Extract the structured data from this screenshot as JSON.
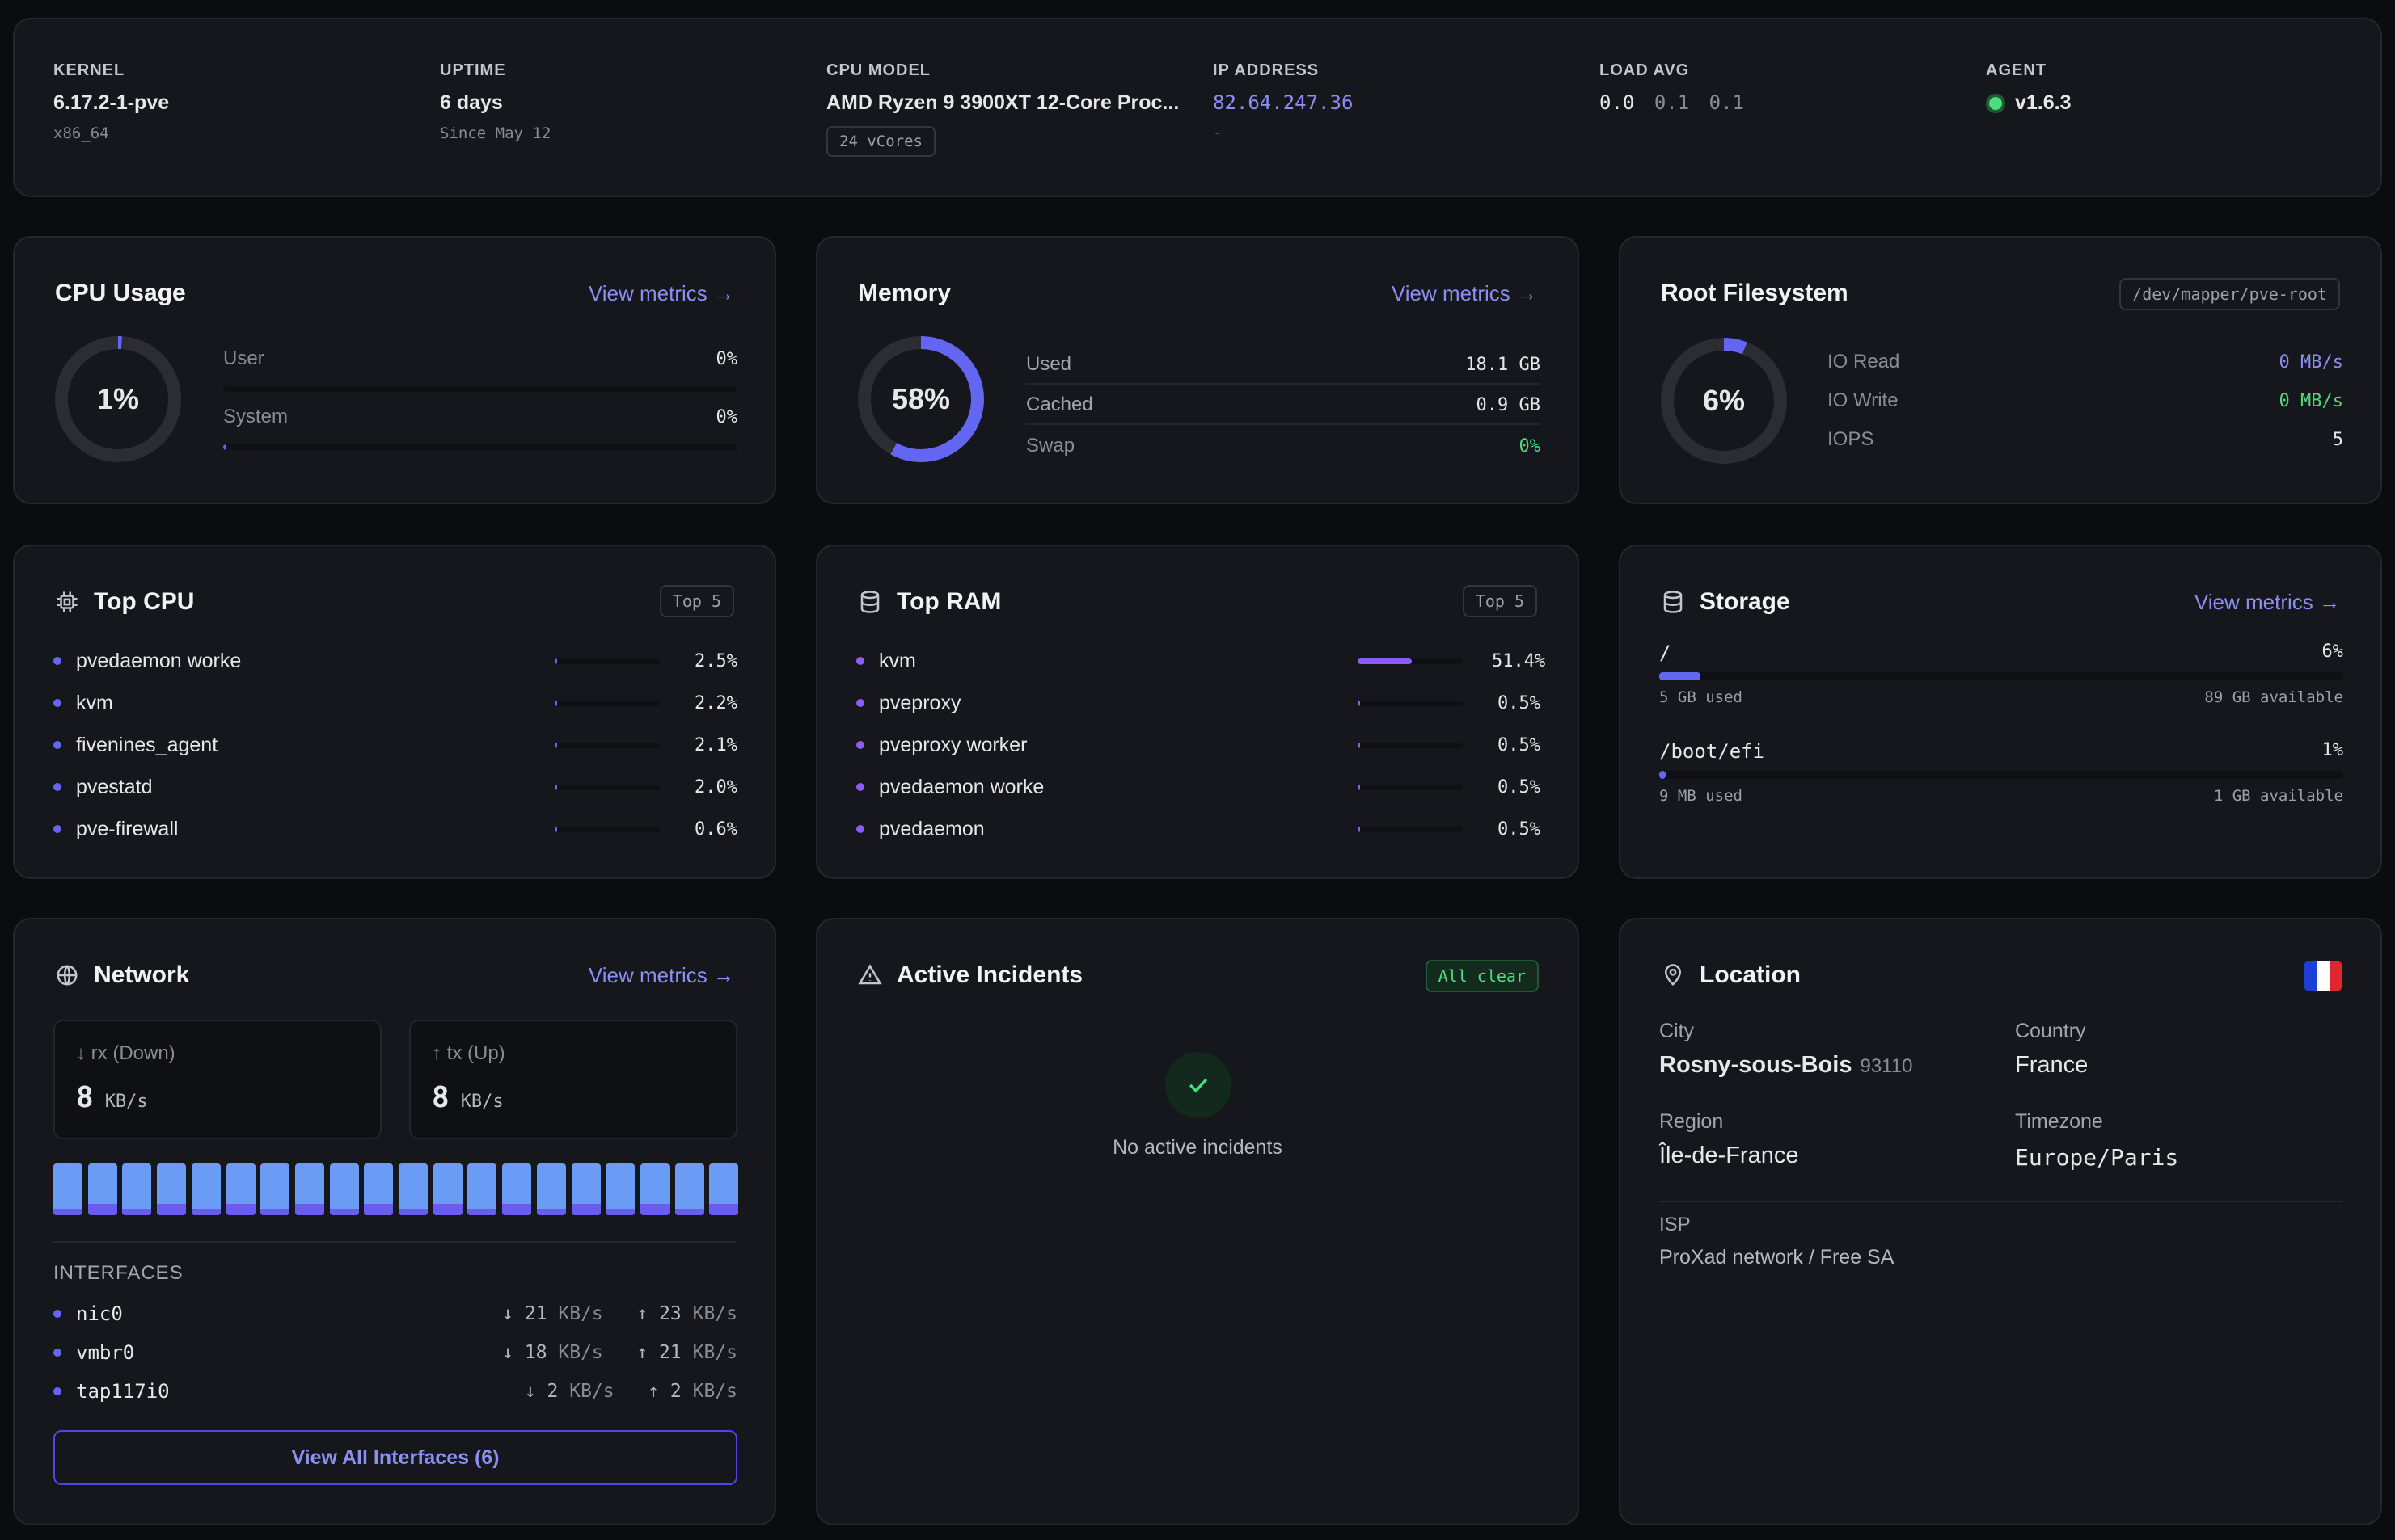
{
  "header": {
    "kernel": {
      "label": "KERNEL",
      "value": "6.17.2-1-pve",
      "sub": "x86_64"
    },
    "uptime": {
      "label": "UPTIME",
      "value": "6 days",
      "sub": "Since May 12"
    },
    "cpu_model": {
      "label": "CPU MODEL",
      "value": "AMD Ryzen 9 3900XT 12-Core Proc...",
      "badge": "24 vCores"
    },
    "ip": {
      "label": "IP ADDRESS",
      "value": "82.64.247.36",
      "sub": "-"
    },
    "load": {
      "label": "LOAD AVG",
      "v1": "0.0",
      "v5": "0.1",
      "v15": "0.1"
    },
    "agent": {
      "label": "AGENT",
      "value": "v1.6.3",
      "status_color": "#4ade80"
    }
  },
  "cpu": {
    "title": "CPU Usage",
    "link": "View metrics →",
    "percent": "1%",
    "percent_value": 1,
    "user_label": "User",
    "user_value": "0%",
    "user_fill": 0,
    "system_label": "System",
    "system_value": "0%",
    "system_fill": 0.5
  },
  "memory": {
    "title": "Memory",
    "link": "View metrics →",
    "percent": "58%",
    "percent_value": 58,
    "used_label": "Used",
    "used_value": "18.1 GB",
    "cached_label": "Cached",
    "cached_value": "0.9 GB",
    "swap_label": "Swap",
    "swap_value": "0%"
  },
  "rootfs": {
    "title": "Root Filesystem",
    "badge": "/dev/mapper/pve-root",
    "percent": "6%",
    "percent_value": 6,
    "ioread_label": "IO Read",
    "ioread_value": "0 MB/s",
    "iowrite_label": "IO Write",
    "iowrite_value": "0 MB/s",
    "iops_label": "IOPS",
    "iops_value": "5"
  },
  "top_cpu": {
    "title": "Top CPU",
    "badge": "Top 5",
    "items": [
      {
        "name": "pvedaemon worke",
        "value": "2.5%",
        "fill": 2.5
      },
      {
        "name": "kvm",
        "value": "2.2%",
        "fill": 2.2
      },
      {
        "name": "fivenines_agent",
        "value": "2.1%",
        "fill": 2.1
      },
      {
        "name": "pvestatd",
        "value": "2.0%",
        "fill": 2.0
      },
      {
        "name": "pve-firewall",
        "value": "0.6%",
        "fill": 0.6
      }
    ]
  },
  "top_ram": {
    "title": "Top RAM",
    "badge": "Top 5",
    "items": [
      {
        "name": "kvm",
        "value": "51.4%",
        "fill": 51.4
      },
      {
        "name": "pveproxy",
        "value": "0.5%",
        "fill": 0.5
      },
      {
        "name": "pveproxy worker",
        "value": "0.5%",
        "fill": 0.5
      },
      {
        "name": "pvedaemon worke",
        "value": "0.5%",
        "fill": 0.5
      },
      {
        "name": "pvedaemon",
        "value": "0.5%",
        "fill": 0.5
      }
    ]
  },
  "storage": {
    "title": "Storage",
    "link": "View metrics →",
    "mounts": [
      {
        "path": "/",
        "percent": "6%",
        "fill": 6,
        "used": "5 GB used",
        "available": "89 GB available"
      },
      {
        "path": "/boot/efi",
        "percent": "1%",
        "fill": 1,
        "used": "9 MB used",
        "available": "1 GB available"
      }
    ]
  },
  "network": {
    "title": "Network",
    "link": "View metrics →",
    "rx_label": "rx (Down)",
    "rx_value": "8",
    "rx_unit": "KB/s",
    "tx_label": "tx (Up)",
    "tx_value": "8",
    "tx_unit": "KB/s",
    "interfaces_label": "INTERFACES",
    "interfaces": [
      {
        "name": "nic0",
        "down": "21",
        "up": "23",
        "unit": "KB/s"
      },
      {
        "name": "vmbr0",
        "down": "18",
        "up": "21",
        "unit": "KB/s"
      },
      {
        "name": "tap117i0",
        "down": "2",
        "up": "2",
        "unit": "KB/s"
      }
    ],
    "button": "View All Interfaces (6)"
  },
  "incidents": {
    "title": "Active Incidents",
    "badge": "All clear",
    "message": "No active incidents"
  },
  "location": {
    "title": "Location",
    "city_label": "City",
    "city": "Rosny-sous-Bois",
    "zip": "93110",
    "country_label": "Country",
    "country": "France",
    "region_label": "Region",
    "region": "Île-de-France",
    "timezone_label": "Timezone",
    "timezone": "Europe/Paris",
    "isp_label": "ISP",
    "isp": "ProXad network / Free SA"
  },
  "colors": {
    "accent": "#8b8ff5",
    "indigo": "#6366f1",
    "purple": "#8b5cf6",
    "green": "#4ade80"
  }
}
